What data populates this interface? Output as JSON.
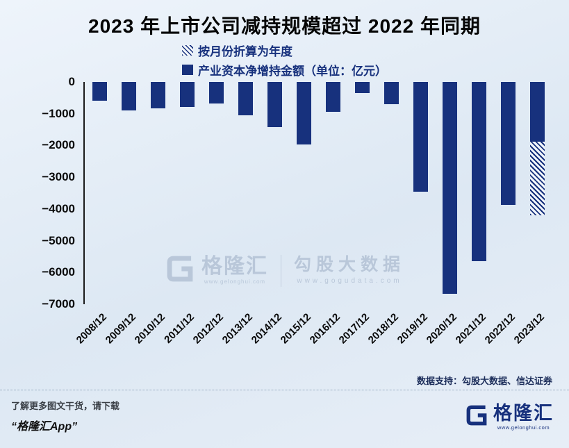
{
  "title": "2023 年上市公司减持规模超过 2022 年同期",
  "legend": {
    "annualized": {
      "label": "按月份折算为年度"
    },
    "net": {
      "label": "产业资本净增持金额（单位：亿元）"
    }
  },
  "chart_data": {
    "type": "bar",
    "title": "2023 年上市公司减持规模超过 2022 年同期",
    "unit": "亿元",
    "categories": [
      "2008/12",
      "2009/12",
      "2010/12",
      "2011/12",
      "2012/12",
      "2013/12",
      "2014/12",
      "2015/12",
      "2016/12",
      "2017/12",
      "2018/12",
      "2019/12",
      "2020/12",
      "2021/12",
      "2022/12",
      "2023/12"
    ],
    "series": [
      {
        "name": "产业资本净增持金额（单位：亿元）",
        "style": "solid",
        "values": [
          -580,
          -890,
          -840,
          -780,
          -670,
          -1060,
          -1430,
          -1970,
          -950,
          -350,
          -710,
          -3460,
          -6680,
          -5640,
          -3870,
          -1880
        ]
      },
      {
        "name": "按月份折算为年度",
        "style": "hatched",
        "values": [
          null,
          null,
          null,
          null,
          null,
          null,
          null,
          null,
          null,
          null,
          null,
          null,
          null,
          null,
          null,
          -4190
        ]
      }
    ],
    "ylim": [
      -7000,
      0
    ],
    "yticks": [
      0,
      -1000,
      -2000,
      -3000,
      -4000,
      -5000,
      -6000,
      -7000
    ],
    "legend_position": "top",
    "grid": false
  },
  "watermark": {
    "brand": "格隆汇",
    "brand_url": "www.gelonghui.com",
    "partner": "勾股大数据",
    "partner_url": "www.gogudata.com"
  },
  "source_note": "数据支持：勾股大数据、信达证券",
  "footer": {
    "promo_line1": "了解更多图文干货，请下载",
    "promo_line2": "“格隆汇App”",
    "logo_brand": "格隆汇",
    "logo_url": "www.gelonghui.com"
  },
  "colors": {
    "bar": "#17317d",
    "background": "#e3ecf6",
    "watermark": "#b9c7d9"
  }
}
